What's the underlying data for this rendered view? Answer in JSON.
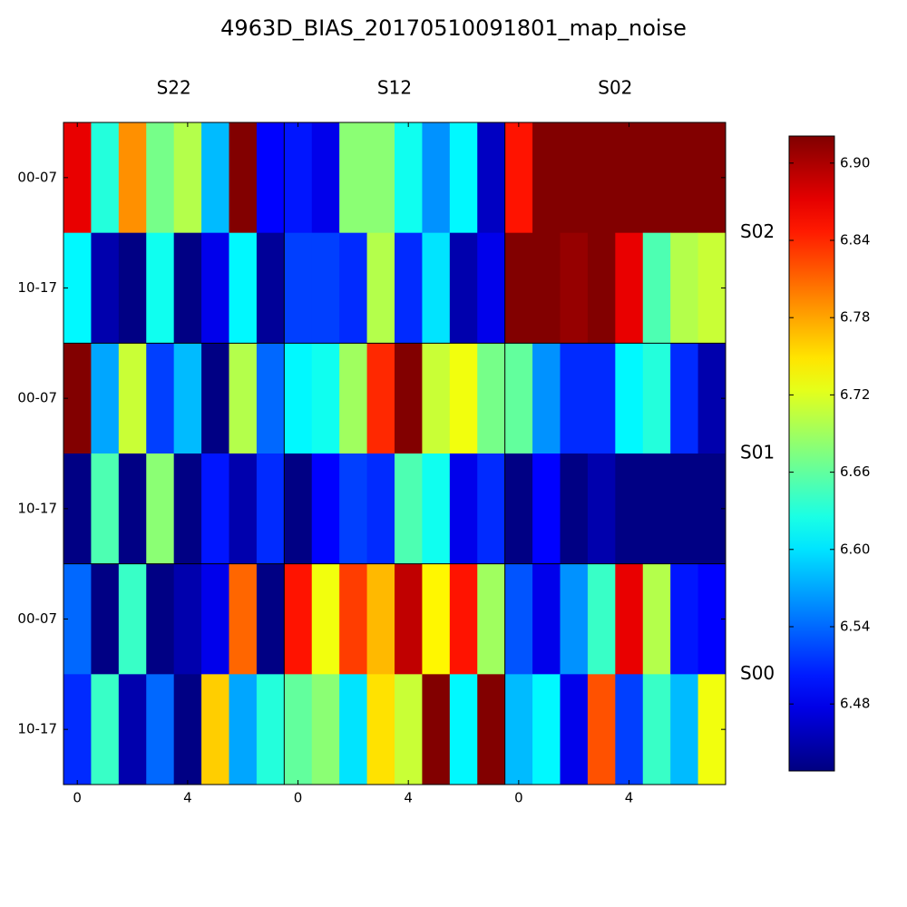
{
  "chart_data": {
    "type": "heatmap",
    "title": "4963D_BIAS_20170510091801_map_noise",
    "colormap": "jet",
    "column_groups": [
      "S22",
      "S12",
      "S02"
    ],
    "row_groups": [
      "S02",
      "S01",
      "S00"
    ],
    "row_labels": [
      "00-07",
      "10-17",
      "00-07",
      "10-17",
      "00-07",
      "10-17"
    ],
    "xlim": [
      -0.5,
      7.5
    ],
    "xticks": [
      0,
      4
    ],
    "clim": [
      6.428,
      6.921
    ],
    "cticks": [
      6.48,
      6.54,
      {
        "value": 6.6,
        "label": "6.60"
      },
      6.66,
      6.72,
      6.78,
      6.84,
      {
        "value": 6.9,
        "label": "6.90"
      }
    ],
    "values": [
      [
        6.87,
        6.63,
        6.79,
        6.67,
        6.7,
        6.58,
        6.92,
        6.49,
        6.5,
        6.48,
        6.68,
        6.68,
        6.62,
        6.56,
        6.61,
        6.46,
        6.85,
        6.92,
        6.92,
        6.92,
        6.92,
        6.92,
        6.92,
        6.92
      ],
      [
        6.61,
        6.45,
        6.43,
        6.62,
        6.43,
        6.48,
        6.61,
        6.44,
        6.52,
        6.52,
        6.51,
        6.7,
        6.51,
        6.6,
        6.45,
        6.48,
        6.92,
        6.92,
        6.91,
        6.92,
        6.87,
        6.65,
        6.7,
        6.71
      ],
      [
        6.92,
        6.57,
        6.71,
        6.52,
        6.58,
        6.43,
        6.7,
        6.54,
        6.61,
        6.62,
        6.69,
        6.84,
        6.92,
        6.71,
        6.73,
        6.67,
        6.66,
        6.56,
        6.51,
        6.51,
        6.61,
        6.63,
        6.51,
        6.45
      ],
      [
        6.43,
        6.65,
        6.43,
        6.68,
        6.43,
        6.5,
        6.45,
        6.51,
        6.43,
        6.49,
        6.52,
        6.51,
        6.65,
        6.62,
        6.48,
        6.51,
        6.43,
        6.49,
        6.43,
        6.45,
        6.43,
        6.43,
        6.43,
        6.43
      ],
      [
        6.54,
        6.43,
        6.64,
        6.43,
        6.45,
        6.48,
        6.81,
        6.43,
        6.85,
        6.73,
        6.83,
        6.77,
        6.89,
        6.74,
        6.85,
        6.69,
        6.53,
        6.48,
        6.56,
        6.64,
        6.87,
        6.7,
        6.5,
        6.49
      ],
      [
        6.51,
        6.64,
        6.45,
        6.54,
        6.43,
        6.76,
        6.57,
        6.63,
        6.66,
        6.68,
        6.6,
        6.75,
        6.71,
        6.92,
        6.61,
        6.92,
        6.58,
        6.61,
        6.48,
        6.82,
        6.52,
        6.64,
        6.58,
        6.73
      ]
    ]
  }
}
